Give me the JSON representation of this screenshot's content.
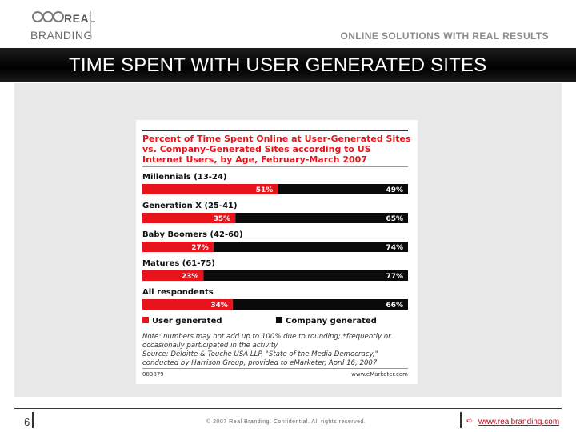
{
  "brand": {
    "name_line1": "REAL",
    "name_line2": "BRANDING"
  },
  "tagline": "ONLINE SOLUTIONS WITH REAL RESULTS",
  "slide_title": "TIME SPENT WITH USER GENERATED SITES",
  "footer": {
    "page_number": "6",
    "copyright": "© 2007 Real Branding. Confidential. All rights reserved.",
    "website": "www.realbranding.com"
  },
  "colors": {
    "user": "#e8141c",
    "company": "#0a0a0a",
    "accent": "#d4001a"
  },
  "chart_data": {
    "type": "bar",
    "orientation": "horizontal-stacked",
    "title": "Percent of Time Spent Online at User-Generated Sites vs. Company-Generated Sites according to US Internet Users, by Age, February-March 2007",
    "categories": [
      "Millennials (13-24)",
      "Generation X (25-41)",
      "Baby Boomers (42-60)",
      "Matures (61-75)",
      "All respondents"
    ],
    "series": [
      {
        "name": "User generated",
        "values": [
          51,
          35,
          27,
          23,
          34
        ],
        "labels": [
          "51%",
          "35%",
          "27%",
          "23%",
          "34%"
        ]
      },
      {
        "name": "Company generated",
        "values": [
          49,
          65,
          74,
          77,
          66
        ],
        "labels": [
          "49%",
          "65%",
          "74%",
          "77%",
          "66%"
        ]
      }
    ],
    "note": "Note: numbers may not add up to 100% due to rounding; *frequently or occasionally participated in the activity",
    "source": "Source: Deloitte & Touche USA LLP, \"State of the Media Democracy,\" conducted by Harrison Group, provided to eMarketer, April 16, 2007",
    "chart_id": "083879",
    "credit": "www.eMarketer.com"
  }
}
